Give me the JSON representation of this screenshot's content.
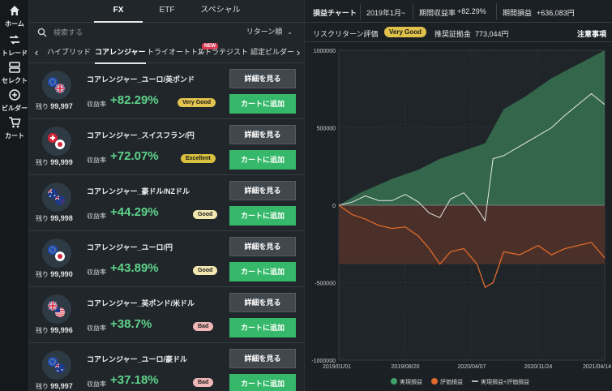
{
  "rail": {
    "home": "ホーム",
    "trade": "トレード",
    "select": "セレクト",
    "builder": "ビルダー",
    "cart": "カート"
  },
  "tabs": [
    "FX",
    "ETF",
    "スペシャル"
  ],
  "search": {
    "placeholder": "検索する"
  },
  "sort": {
    "label": "リターン順"
  },
  "categories": [
    "ハイブリッド",
    "コアレンジャー",
    "トライオートトレ",
    "ストラテジスト",
    "認定ビルダー"
  ],
  "new_badge": "NEW",
  "labels": {
    "remain_prefix": "残り",
    "return_label": "収益率",
    "detail_button": "詳細を見る",
    "cart_button": "カートに追加"
  },
  "cards": [
    {
      "title": "コアレンジャー_ユーロ/英ポンド",
      "remain": "99,997",
      "return": "+82.29%",
      "rating": "Very Good",
      "rating_color": "#e3c44e",
      "flag": "eu-gb"
    },
    {
      "title": "コアレンジャー_スイスフラン/円",
      "remain": "99,999",
      "return": "+72.07%",
      "rating": "Excellent",
      "rating_color": "#d9c13e",
      "flag": "ch-jp"
    },
    {
      "title": "コアレンジャー_豪ドル/NZドル",
      "remain": "99,998",
      "return": "+44.29%",
      "rating": "Good",
      "rating_color": "#f3e7b0",
      "flag": "au-nz"
    },
    {
      "title": "コアレンジャー_ユーロ/円",
      "remain": "99,990",
      "return": "+43.89%",
      "rating": "Good",
      "rating_color": "#f3e7b0",
      "flag": "eu-jp"
    },
    {
      "title": "コアレンジャー_英ポンド/米ドル",
      "remain": "99,996",
      "return": "+38.7%",
      "rating": "Bad",
      "rating_color": "#f1b7b7",
      "flag": "gb-us"
    },
    {
      "title": "コアレンジャー_ユーロ/豪ドル",
      "remain": "99,997",
      "return": "+37.18%",
      "rating": "Bad",
      "rating_color": "#f1b7b7",
      "flag": "eu-au"
    }
  ],
  "chart_header": {
    "title": "損益チャート",
    "period": "2019年1月~",
    "return_label": "期間収益率",
    "return_value": "+82.29%",
    "pnl_label": "期間損益",
    "pnl_value": "+636,083円"
  },
  "chart_sub": {
    "risk_label": "リスクリターン評価",
    "risk_value": "Very Good",
    "margin_label": "推奨証拠金",
    "margin_value": "773,044円",
    "notice": "注意事項"
  },
  "colors": {
    "realized": "#3fa06a",
    "unrealized": "#e06a2c",
    "total": "#e8e8e8",
    "accent_green": "#36b86a"
  },
  "chart_data": {
    "type": "area",
    "x_ticks": [
      "2019/01/01",
      "2019/08/20",
      "2020/04/07",
      "2020/11/24",
      "2021/04/14"
    ],
    "y_ticks": [
      1000000,
      500000,
      0,
      -500000,
      -1000000
    ],
    "y_tick_labels": [
      "1000000",
      "500000",
      "0",
      "-500000",
      "-1000000"
    ],
    "ylim": [
      -1000000,
      1000000
    ],
    "legend": [
      "実現損益",
      "評価損益",
      "実現損益+評価損益"
    ],
    "legend_position": "bottom",
    "series": [
      {
        "name": "実現損益",
        "color": "#3fa06a",
        "x": [
          0,
          0.08,
          0.2,
          0.3,
          0.38,
          0.45,
          0.55,
          0.62,
          0.7,
          0.8,
          0.9,
          1.0
        ],
        "values": [
          0,
          80000,
          170000,
          230000,
          300000,
          340000,
          400000,
          620000,
          700000,
          820000,
          910000,
          1000000
        ]
      },
      {
        "name": "評価損益",
        "color": "#e06a2c",
        "x": [
          0,
          0.05,
          0.1,
          0.15,
          0.2,
          0.25,
          0.3,
          0.34,
          0.38,
          0.42,
          0.47,
          0.52,
          0.55,
          0.58,
          0.62,
          0.68,
          0.75,
          0.8,
          0.85,
          0.9,
          0.95,
          1.0
        ],
        "values": [
          0,
          -60000,
          -90000,
          -130000,
          -150000,
          -140000,
          -200000,
          -280000,
          -380000,
          -300000,
          -280000,
          -380000,
          -530000,
          -500000,
          -300000,
          -320000,
          -260000,
          -320000,
          -280000,
          -260000,
          -240000,
          -340000
        ]
      },
      {
        "name": "実現損益+評価損益",
        "color": "#e8e8e8",
        "x": [
          0,
          0.05,
          0.1,
          0.15,
          0.2,
          0.25,
          0.3,
          0.34,
          0.38,
          0.42,
          0.47,
          0.52,
          0.55,
          0.58,
          0.62,
          0.68,
          0.75,
          0.8,
          0.85,
          0.9,
          0.95,
          1.0
        ],
        "values": [
          0,
          20000,
          60000,
          30000,
          30000,
          70000,
          20000,
          -50000,
          -80000,
          40000,
          80000,
          -20000,
          -100000,
          300000,
          320000,
          380000,
          450000,
          500000,
          580000,
          650000,
          720000,
          650000
        ]
      }
    ]
  }
}
